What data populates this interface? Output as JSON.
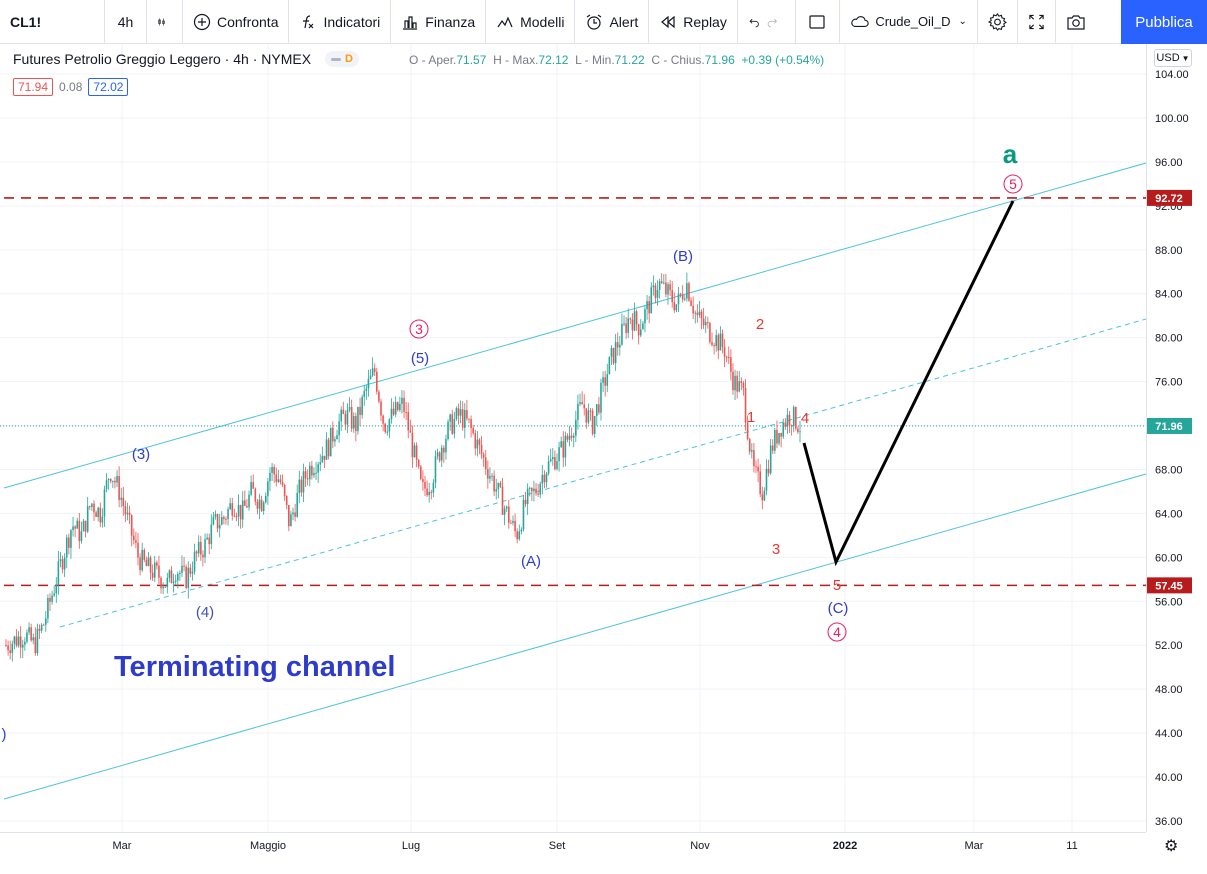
{
  "toolbar": {
    "symbol": "CL1!",
    "interval": "4h",
    "compare": "Confronta",
    "indicators": "Indicatori",
    "finance": "Finanza",
    "templates": "Modelli",
    "alert": "Alert",
    "replay": "Replay",
    "layout_name": "Crude_Oil_D",
    "publish": "Pubblica"
  },
  "legend": {
    "title": "Futures Petrolio Greggio Leggero · 4h · NYMEX",
    "badge": "D",
    "o_label": "O - Aper.",
    "o": "71.57",
    "h_label": "H - Max.",
    "h": "72.12",
    "l_label": "L - Min.",
    "l": "71.22",
    "c_label": "C - Chius.",
    "c": "71.96",
    "change": "+0.39 (+0.54%)",
    "bid": "71.94",
    "spread": "0.08",
    "ask": "72.02"
  },
  "axis": {
    "currency": "USD",
    "y_ticks": [
      "104.00",
      "100.00",
      "96.00",
      "92.00",
      "88.00",
      "84.00",
      "80.00",
      "76.00",
      "72.00",
      "68.00",
      "64.00",
      "60.00",
      "56.00",
      "52.00",
      "48.00",
      "44.00",
      "40.00",
      "36.00"
    ],
    "x_ticks": [
      "Mar",
      "Maggio",
      "Lug",
      "Set",
      "Nov",
      "2022",
      "Mar",
      "11"
    ],
    "last_price": "71.96",
    "level_high": "92.72",
    "level_low": "57.45"
  },
  "annotations": {
    "wave_a": "a",
    "wave_5_circle_top": "5",
    "wave_B": "(B)",
    "wave_3_circle": "3",
    "wave_5_paren": "(5)",
    "wave_3_paren": "(3)",
    "wave_4_paren": "(4)",
    "wave_A": "(A)",
    "wave_C": "(C)",
    "wave_4_circle": "4",
    "sub_1": "1",
    "sub_2": "2",
    "sub_3": "3",
    "sub_4": "4",
    "sub_5": "5",
    "left_paren": ")",
    "channel_label": "Terminating channel"
  },
  "chart_data": {
    "type": "candlestick",
    "title": "Futures Petrolio Greggio Leggero · 4h · NYMEX",
    "ylim": [
      34,
      106
    ],
    "x_labels": [
      "Mar",
      "Maggio",
      "Lug",
      "Set",
      "Nov",
      "2022",
      "Mar",
      "11"
    ],
    "last_price": 71.96,
    "horizontal_levels": [
      92.72,
      57.45
    ],
    "price_path": [
      52,
      52.5,
      53,
      52,
      54,
      57,
      60,
      63,
      62,
      65,
      64,
      68,
      66,
      63,
      60,
      59,
      58.5,
      57.5,
      59,
      58,
      60,
      61,
      63,
      63.5,
      65,
      64,
      66,
      65,
      68,
      67,
      63,
      66,
      68,
      69,
      70,
      72,
      73,
      72,
      75,
      77,
      72,
      73,
      74,
      70,
      66,
      67,
      70,
      72,
      73,
      72,
      70,
      68,
      66,
      64,
      62,
      65,
      66,
      68,
      69,
      70,
      72,
      74,
      72,
      75,
      78,
      80,
      82,
      81,
      83,
      85,
      84,
      83,
      85,
      82,
      81,
      80,
      79,
      76,
      75,
      68,
      66,
      70,
      72,
      73,
      71.96
    ],
    "color_up": "#26a69a",
    "color_down": "#ef5350"
  }
}
